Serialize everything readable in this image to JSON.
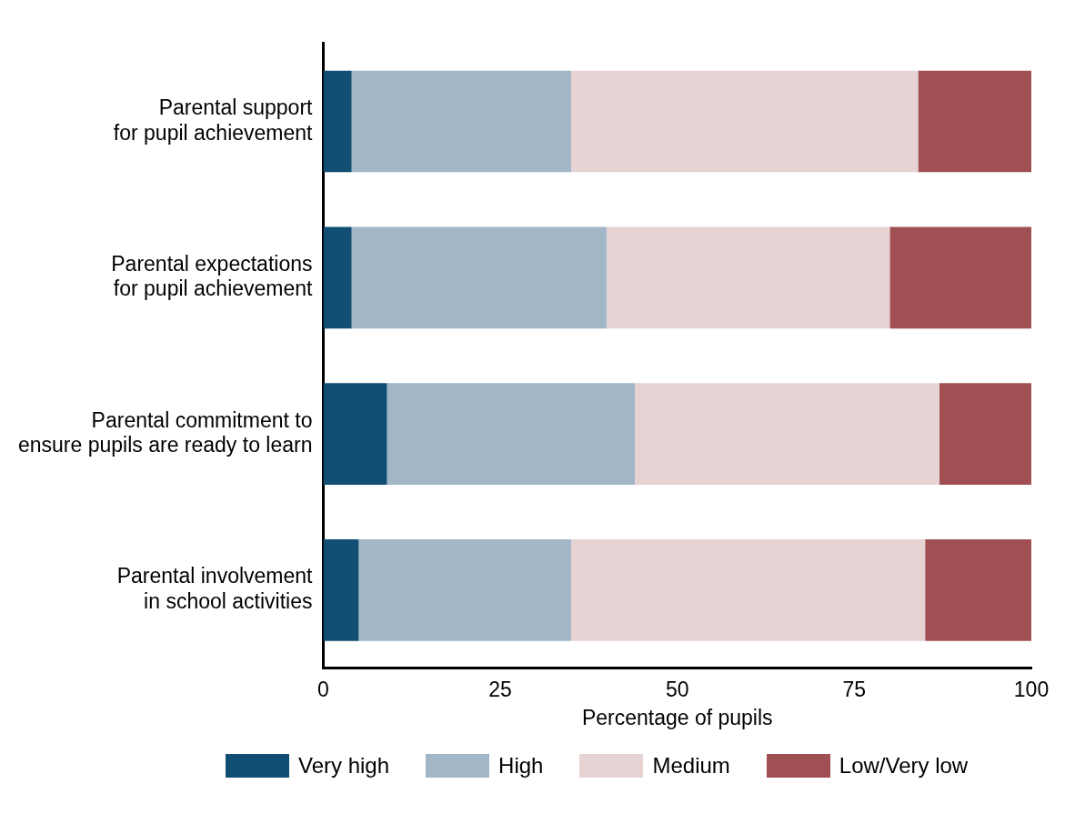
{
  "chart_data": {
    "type": "bar",
    "orientation": "horizontal",
    "stacked": true,
    "xlabel": "Percentage of pupils",
    "categories": [
      "Parental support\nfor pupil achievement",
      "Parental expectations\nfor pupil achievement",
      "Parental commitment to\nensure pupils are ready to learn",
      "Parental involvement\nin school activities"
    ],
    "series": [
      {
        "name": "Very high",
        "color": "#114e73",
        "values": [
          4,
          4,
          9,
          5
        ]
      },
      {
        "name": "High",
        "color": "#a1b7c7",
        "values": [
          31,
          36,
          35,
          30
        ]
      },
      {
        "name": "Medium",
        "color": "#e7d3d4",
        "values": [
          49,
          40,
          43,
          50
        ]
      },
      {
        "name": "Low/Very low",
        "color": "#a05053",
        "values": [
          16,
          20,
          13,
          15
        ]
      }
    ],
    "xlim": [
      0,
      100
    ],
    "xticks": [
      0,
      25,
      50,
      75,
      100
    ],
    "grid": false,
    "legend": "bottom"
  }
}
